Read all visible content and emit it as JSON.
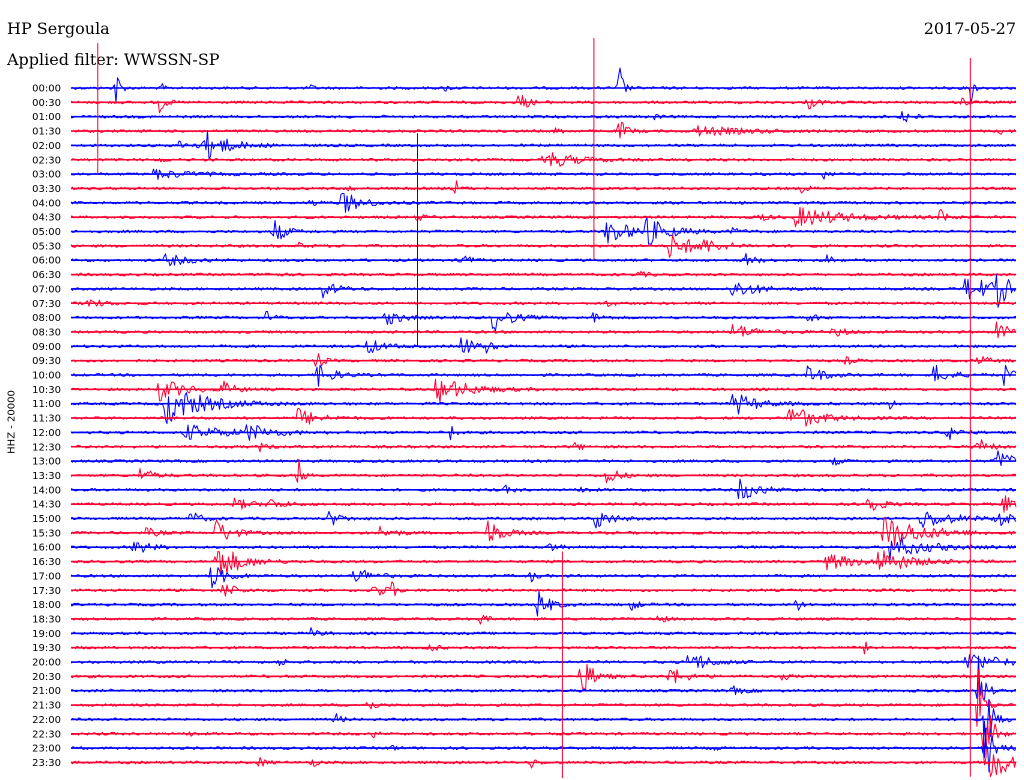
{
  "header": {
    "station": "HP Sergoula",
    "filter": "Applied filter: WWSSN-SP",
    "date": "2017-05-27"
  },
  "colors": {
    "odd": "#0000ff",
    "even": "#ff0033"
  },
  "chart_data": {
    "type": "line",
    "title": "HP Sergoula",
    "subtitle": "Applied filter: WWSSN-SP",
    "ylabel": "HHZ - 20000",
    "x_unit": "minutes",
    "xlim": [
      0,
      30
    ],
    "grid": false,
    "rows": [
      {
        "time": "00:00",
        "color": "blue",
        "events": [
          {
            "t": 1.4,
            "amp": 28,
            "dur": 0.2
          },
          {
            "t": 2.9,
            "amp": 5,
            "dur": 0.1
          },
          {
            "t": 7.6,
            "amp": 3,
            "dur": 0.2
          },
          {
            "t": 11.9,
            "amp": 4,
            "dur": 0.2
          },
          {
            "t": 17.4,
            "amp": 30,
            "dur": 0.2
          },
          {
            "t": 28.6,
            "amp": 30,
            "dur": 0.1
          }
        ]
      },
      {
        "time": "00:30",
        "color": "red",
        "events": [
          {
            "t": 2.8,
            "amp": 12,
            "dur": 0.3
          },
          {
            "t": 14.2,
            "amp": 10,
            "dur": 0.5
          },
          {
            "t": 23.4,
            "amp": 8,
            "dur": 0.4
          },
          {
            "t": 28.3,
            "amp": 6,
            "dur": 0.2
          }
        ]
      },
      {
        "time": "01:00",
        "color": "blue",
        "events": [
          {
            "t": 18.5,
            "amp": 4,
            "dur": 0.2
          },
          {
            "t": 26.4,
            "amp": 10,
            "dur": 0.4
          }
        ]
      },
      {
        "time": "01:30",
        "color": "red",
        "events": [
          {
            "t": 15.4,
            "amp": 4,
            "dur": 0.3
          },
          {
            "t": 17.4,
            "amp": 12,
            "dur": 0.4
          },
          {
            "t": 19.8,
            "amp": 5,
            "dur": 2.5
          },
          {
            "t": 29.5,
            "amp": 3,
            "dur": 0.3
          }
        ]
      },
      {
        "time": "02:00",
        "color": "blue",
        "events": [
          {
            "t": 3.4,
            "amp": 4,
            "dur": 1.0
          },
          {
            "t": 4.2,
            "amp": 16,
            "dur": 1.2
          }
        ]
      },
      {
        "time": "02:30",
        "color": "red",
        "events": [
          {
            "t": 15.0,
            "amp": 10,
            "dur": 1.5
          },
          {
            "t": 2.8,
            "amp": 5,
            "dur": 0.2
          }
        ]
      },
      {
        "time": "03:00",
        "color": "blue",
        "events": [
          {
            "t": 2.6,
            "amp": 5,
            "dur": 1.8
          },
          {
            "t": 23.8,
            "amp": 8,
            "dur": 0.3
          }
        ]
      },
      {
        "time": "03:30",
        "color": "red",
        "events": [
          {
            "t": 12.2,
            "amp": 10,
            "dur": 0.2
          },
          {
            "t": 8.8,
            "amp": 3,
            "dur": 0.3
          },
          {
            "t": 23.2,
            "amp": 4,
            "dur": 0.4
          }
        ]
      },
      {
        "time": "04:00",
        "color": "blue",
        "events": [
          {
            "t": 8.6,
            "amp": 12,
            "dur": 1.0
          },
          {
            "t": 7.6,
            "amp": 3,
            "dur": 0.5
          }
        ]
      },
      {
        "time": "04:30",
        "color": "red",
        "events": [
          {
            "t": 11.0,
            "amp": 4,
            "dur": 0.3
          },
          {
            "t": 21.8,
            "amp": 4,
            "dur": 0.6
          },
          {
            "t": 23.0,
            "amp": 10,
            "dur": 2.5
          },
          {
            "t": 27.6,
            "amp": 10,
            "dur": 0.3
          }
        ]
      },
      {
        "time": "05:00",
        "color": "blue",
        "events": [
          {
            "t": 6.4,
            "amp": 14,
            "dur": 0.6
          },
          {
            "t": 17.0,
            "amp": 14,
            "dur": 1.2
          },
          {
            "t": 18.2,
            "amp": 14,
            "dur": 1.2
          },
          {
            "t": 21.0,
            "amp": 3,
            "dur": 0.5
          }
        ]
      },
      {
        "time": "05:30",
        "color": "red",
        "events": [
          {
            "t": 19.0,
            "amp": 12,
            "dur": 1.4
          },
          {
            "t": 20.0,
            "amp": 5,
            "dur": 1.0
          },
          {
            "t": 7.2,
            "amp": 3,
            "dur": 0.4
          }
        ]
      },
      {
        "time": "06:00",
        "color": "blue",
        "events": [
          {
            "t": 3.0,
            "amp": 6,
            "dur": 1.2
          },
          {
            "t": 12.4,
            "amp": 12,
            "dur": 0.3
          },
          {
            "t": 21.4,
            "amp": 7,
            "dur": 0.5
          },
          {
            "t": 24.0,
            "amp": 4,
            "dur": 0.4
          }
        ]
      },
      {
        "time": "06:30",
        "color": "red",
        "events": [
          {
            "t": 6.2,
            "amp": 4,
            "dur": 0.4
          },
          {
            "t": 18.0,
            "amp": 3,
            "dur": 0.5
          }
        ]
      },
      {
        "time": "07:00",
        "color": "blue",
        "events": [
          {
            "t": 8.0,
            "amp": 8,
            "dur": 0.8
          },
          {
            "t": 21.0,
            "amp": 10,
            "dur": 1.2
          },
          {
            "t": 28.4,
            "amp": 12,
            "dur": 2.0
          },
          {
            "t": 29.4,
            "amp": 14,
            "dur": 0.6
          }
        ]
      },
      {
        "time": "07:30",
        "color": "red",
        "events": [
          {
            "t": 0.5,
            "amp": 5,
            "dur": 0.8
          },
          {
            "t": 17.0,
            "amp": 3,
            "dur": 0.4
          }
        ]
      },
      {
        "time": "08:00",
        "color": "blue",
        "events": [
          {
            "t": 6.2,
            "amp": 6,
            "dur": 0.4
          },
          {
            "t": 10.0,
            "amp": 8,
            "dur": 0.8
          },
          {
            "t": 13.4,
            "amp": 14,
            "dur": 0.9
          },
          {
            "t": 16.6,
            "amp": 6,
            "dur": 0.4
          },
          {
            "t": 23.4,
            "amp": 6,
            "dur": 0.4
          }
        ]
      },
      {
        "time": "08:30",
        "color": "red",
        "events": [
          {
            "t": 21.0,
            "amp": 8,
            "dur": 1.2
          },
          {
            "t": 24.2,
            "amp": 6,
            "dur": 0.6
          },
          {
            "t": 29.4,
            "amp": 12,
            "dur": 0.6
          }
        ]
      },
      {
        "time": "09:00",
        "color": "blue",
        "events": [
          {
            "t": 9.4,
            "amp": 8,
            "dur": 0.8
          },
          {
            "t": 12.4,
            "amp": 12,
            "dur": 0.6
          },
          {
            "t": 13.2,
            "amp": 6,
            "dur": 0.3
          }
        ]
      },
      {
        "time": "09:30",
        "color": "red",
        "events": [
          {
            "t": 7.8,
            "amp": 10,
            "dur": 0.3
          },
          {
            "t": 24.6,
            "amp": 4,
            "dur": 0.4
          },
          {
            "t": 28.8,
            "amp": 5,
            "dur": 0.6
          }
        ]
      },
      {
        "time": "10:00",
        "color": "blue",
        "events": [
          {
            "t": 7.8,
            "amp": 12,
            "dur": 0.8
          },
          {
            "t": 23.4,
            "amp": 10,
            "dur": 0.8
          },
          {
            "t": 27.4,
            "amp": 10,
            "dur": 0.8
          },
          {
            "t": 29.6,
            "amp": 12,
            "dur": 0.4
          }
        ]
      },
      {
        "time": "10:30",
        "color": "red",
        "events": [
          {
            "t": 2.8,
            "amp": 12,
            "dur": 1.2
          },
          {
            "t": 4.8,
            "amp": 8,
            "dur": 0.6
          },
          {
            "t": 11.6,
            "amp": 14,
            "dur": 1.6
          }
        ]
      },
      {
        "time": "11:00",
        "color": "blue",
        "events": [
          {
            "t": 3.0,
            "amp": 20,
            "dur": 2.0
          },
          {
            "t": 21.0,
            "amp": 12,
            "dur": 1.2
          },
          {
            "t": 26.0,
            "amp": 6,
            "dur": 0.2
          }
        ]
      },
      {
        "time": "11:30",
        "color": "red",
        "events": [
          {
            "t": 7.2,
            "amp": 10,
            "dur": 1.0
          },
          {
            "t": 22.8,
            "amp": 14,
            "dur": 1.4
          }
        ]
      },
      {
        "time": "12:00",
        "color": "blue",
        "events": [
          {
            "t": 3.6,
            "amp": 8,
            "dur": 2.2
          },
          {
            "t": 5.6,
            "amp": 8,
            "dur": 1.2
          },
          {
            "t": 12.0,
            "amp": 14,
            "dur": 0.2
          },
          {
            "t": 27.8,
            "amp": 8,
            "dur": 0.6
          }
        ]
      },
      {
        "time": "12:30",
        "color": "red",
        "events": [
          {
            "t": 6.0,
            "amp": 4,
            "dur": 0.4
          },
          {
            "t": 16.0,
            "amp": 4,
            "dur": 0.4
          },
          {
            "t": 28.8,
            "amp": 10,
            "dur": 0.5
          }
        ]
      },
      {
        "time": "13:00",
        "color": "blue",
        "events": [
          {
            "t": 29.4,
            "amp": 12,
            "dur": 0.8
          },
          {
            "t": 24.2,
            "amp": 4,
            "dur": 0.4
          }
        ]
      },
      {
        "time": "13:30",
        "color": "red",
        "events": [
          {
            "t": 2.2,
            "amp": 8,
            "dur": 0.6
          },
          {
            "t": 7.2,
            "amp": 22,
            "dur": 0.2
          },
          {
            "t": 17.0,
            "amp": 10,
            "dur": 0.6
          }
        ]
      },
      {
        "time": "14:00",
        "color": "blue",
        "events": [
          {
            "t": 21.2,
            "amp": 12,
            "dur": 1.0
          },
          {
            "t": 13.8,
            "amp": 4,
            "dur": 0.4
          },
          {
            "t": 16.2,
            "amp": 4,
            "dur": 0.4
          }
        ]
      },
      {
        "time": "14:30",
        "color": "red",
        "events": [
          {
            "t": 5.2,
            "amp": 6,
            "dur": 0.8
          },
          {
            "t": 6.2,
            "amp": 6,
            "dur": 0.8
          },
          {
            "t": 25.2,
            "amp": 16,
            "dur": 0.6
          },
          {
            "t": 29.6,
            "amp": 10,
            "dur": 0.5
          }
        ]
      },
      {
        "time": "15:00",
        "color": "blue",
        "events": [
          {
            "t": 3.8,
            "amp": 8,
            "dur": 0.5
          },
          {
            "t": 8.2,
            "amp": 8,
            "dur": 0.6
          },
          {
            "t": 16.6,
            "amp": 12,
            "dur": 0.8
          },
          {
            "t": 27.0,
            "amp": 10,
            "dur": 1.6
          },
          {
            "t": 29.4,
            "amp": 10,
            "dur": 0.8
          }
        ]
      },
      {
        "time": "15:30",
        "color": "red",
        "events": [
          {
            "t": 2.4,
            "amp": 5,
            "dur": 0.6
          },
          {
            "t": 4.6,
            "amp": 14,
            "dur": 0.8
          },
          {
            "t": 9.8,
            "amp": 6,
            "dur": 0.8
          },
          {
            "t": 13.2,
            "amp": 14,
            "dur": 0.8
          },
          {
            "t": 25.8,
            "amp": 18,
            "dur": 2.0
          }
        ]
      },
      {
        "time": "16:00",
        "color": "blue",
        "events": [
          {
            "t": 2.0,
            "amp": 8,
            "dur": 0.8
          },
          {
            "t": 15.2,
            "amp": 6,
            "dur": 0.4
          },
          {
            "t": 26.0,
            "amp": 12,
            "dur": 1.8
          }
        ]
      },
      {
        "time": "16:30",
        "color": "red",
        "events": [
          {
            "t": 4.6,
            "amp": 20,
            "dur": 1.2
          },
          {
            "t": 24.0,
            "amp": 8,
            "dur": 1.6
          },
          {
            "t": 25.6,
            "amp": 12,
            "dur": 1.6
          }
        ]
      },
      {
        "time": "17:00",
        "color": "blue",
        "events": [
          {
            "t": 4.4,
            "amp": 14,
            "dur": 0.8
          },
          {
            "t": 9.0,
            "amp": 10,
            "dur": 0.8
          },
          {
            "t": 14.6,
            "amp": 6,
            "dur": 0.3
          }
        ]
      },
      {
        "time": "17:30",
        "color": "red",
        "events": [
          {
            "t": 4.8,
            "amp": 10,
            "dur": 0.6
          },
          {
            "t": 9.6,
            "amp": 8,
            "dur": 0.6
          },
          {
            "t": 10.2,
            "amp": 8,
            "dur": 0.2
          }
        ]
      },
      {
        "time": "18:00",
        "color": "blue",
        "events": [
          {
            "t": 14.8,
            "amp": 16,
            "dur": 0.6
          },
          {
            "t": 17.8,
            "amp": 8,
            "dur": 0.3
          },
          {
            "t": 23.0,
            "amp": 8,
            "dur": 0.3
          }
        ]
      },
      {
        "time": "18:30",
        "color": "red",
        "events": [
          {
            "t": 13.0,
            "amp": 6,
            "dur": 0.3
          },
          {
            "t": 18.6,
            "amp": 8,
            "dur": 0.3
          }
        ]
      },
      {
        "time": "19:00",
        "color": "blue",
        "events": [
          {
            "t": 7.6,
            "amp": 5,
            "dur": 0.4
          }
        ]
      },
      {
        "time": "19:30",
        "color": "red",
        "events": [
          {
            "t": 11.4,
            "amp": 6,
            "dur": 0.3
          },
          {
            "t": 25.2,
            "amp": 6,
            "dur": 0.3
          }
        ]
      },
      {
        "time": "20:00",
        "color": "blue",
        "events": [
          {
            "t": 6.6,
            "amp": 4,
            "dur": 0.4
          },
          {
            "t": 19.6,
            "amp": 12,
            "dur": 1.0
          },
          {
            "t": 28.4,
            "amp": 10,
            "dur": 1.8
          }
        ]
      },
      {
        "time": "20:30",
        "color": "red",
        "events": [
          {
            "t": 16.2,
            "amp": 22,
            "dur": 0.6
          },
          {
            "t": 19.0,
            "amp": 10,
            "dur": 0.8
          },
          {
            "t": 22.6,
            "amp": 4,
            "dur": 0.3
          }
        ]
      },
      {
        "time": "21:00",
        "color": "blue",
        "events": [
          {
            "t": 21.0,
            "amp": 4,
            "dur": 0.6
          },
          {
            "t": 28.8,
            "amp": 40,
            "dur": 0.3
          }
        ]
      },
      {
        "time": "21:30",
        "color": "red",
        "events": [
          {
            "t": 9.4,
            "amp": 10,
            "dur": 0.3
          },
          {
            "t": 28.8,
            "amp": 40,
            "dur": 0.3
          }
        ]
      },
      {
        "time": "22:00",
        "color": "blue",
        "events": [
          {
            "t": 8.4,
            "amp": 6,
            "dur": 0.3
          },
          {
            "t": 29.0,
            "amp": 40,
            "dur": 0.4
          }
        ]
      },
      {
        "time": "22:30",
        "color": "red",
        "events": [
          {
            "t": 3.8,
            "amp": 4,
            "dur": 0.2
          },
          {
            "t": 9.6,
            "amp": 4,
            "dur": 0.2
          },
          {
            "t": 29.0,
            "amp": 40,
            "dur": 0.4
          }
        ]
      },
      {
        "time": "23:00",
        "color": "blue",
        "events": [
          {
            "t": 10.2,
            "amp": 4,
            "dur": 0.2
          },
          {
            "t": 20.4,
            "amp": 4,
            "dur": 0.2
          },
          {
            "t": 29.0,
            "amp": 40,
            "dur": 0.5
          }
        ]
      },
      {
        "time": "23:30",
        "color": "red",
        "events": [
          {
            "t": 6.0,
            "amp": 6,
            "dur": 0.3
          },
          {
            "t": 7.6,
            "amp": 6,
            "dur": 0.3
          },
          {
            "t": 14.6,
            "amp": 6,
            "dur": 0.3
          },
          {
            "t": 29.2,
            "amp": 24,
            "dur": 0.8
          }
        ]
      }
    ]
  }
}
